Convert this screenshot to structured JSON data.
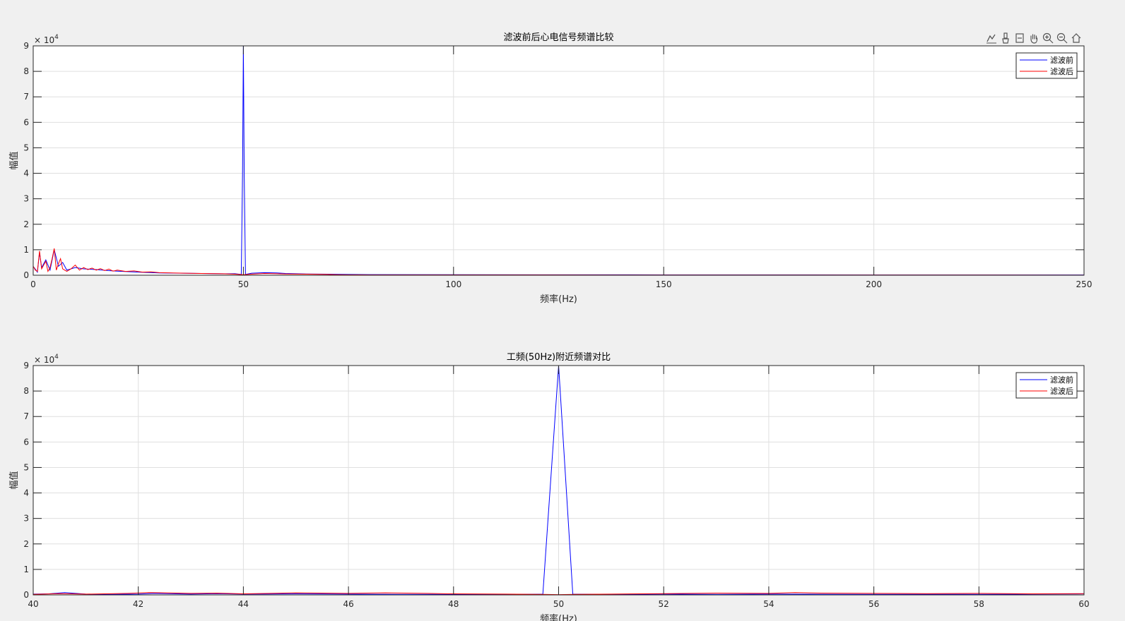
{
  "toolbar": {
    "icons": [
      "data-tips-icon",
      "brush-icon",
      "restore-view-icon",
      "pan-icon",
      "zoom-in-icon",
      "zoom-out-icon",
      "home-icon"
    ]
  },
  "colors": {
    "before": "#0000ff",
    "after": "#ff0000",
    "grid": "#dfdfdf",
    "axes_bg": "#ffffff",
    "figure_bg": "#f0f0f0"
  },
  "chart_data": [
    {
      "type": "line",
      "title": "滤波前后心电信号频谱比较",
      "xlabel": "频率(Hz)",
      "ylabel": "幅值",
      "xlim": [
        0,
        250
      ],
      "ylim": [
        0,
        90000
      ],
      "xticks": [
        0,
        50,
        100,
        150,
        200,
        250
      ],
      "xtick_labels": [
        "0",
        "50",
        "100",
        "150",
        "200",
        "250"
      ],
      "yticks": [
        0,
        10000,
        20000,
        30000,
        40000,
        50000,
        60000,
        70000,
        80000,
        90000
      ],
      "ytick_labels": [
        "0",
        "1",
        "2",
        "3",
        "4",
        "5",
        "6",
        "7",
        "8",
        "9"
      ],
      "y_exponent": "× 10",
      "y_exponent_power": "4",
      "grid": true,
      "legend": "top-right",
      "series": [
        {
          "name": "滤波前",
          "color": "#0000ff",
          "x": [
            0,
            1,
            1.5,
            2,
            3,
            4,
            5,
            6,
            7,
            8,
            10,
            12,
            15,
            18,
            20,
            25,
            30,
            35,
            40,
            45,
            48,
            49.5,
            49.8,
            50,
            50.2,
            50.5,
            52,
            55,
            58,
            60,
            65,
            70,
            75,
            80,
            100,
            150,
            200,
            250
          ],
          "y": [
            3500,
            1200,
            9000,
            3000,
            6000,
            2000,
            10000,
            3500,
            5000,
            2000,
            3000,
            2500,
            2200,
            1800,
            1600,
            1200,
            900,
            800,
            700,
            600,
            600,
            300,
            40000,
            90000,
            40000,
            300,
            800,
            1000,
            900,
            700,
            500,
            400,
            300,
            250,
            200,
            150,
            120,
            100
          ]
        },
        {
          "name": "滤波后",
          "color": "#ff0000",
          "x": [
            0,
            0.5,
            1,
            1.5,
            2,
            2.5,
            3,
            3.5,
            4,
            4.5,
            5,
            5.5,
            6,
            6.5,
            7,
            7.5,
            8,
            9,
            10,
            11,
            12,
            13,
            14,
            15,
            16,
            17,
            18,
            19,
            20,
            22,
            24,
            26,
            28,
            30,
            33,
            36,
            40,
            45,
            48,
            50,
            52,
            55,
            58,
            60,
            65,
            70,
            72,
            75,
            80,
            100,
            150,
            200,
            250
          ],
          "y": [
            3500,
            2000,
            1500,
            9500,
            2500,
            4000,
            5500,
            1500,
            3000,
            6500,
            10500,
            2000,
            4500,
            6500,
            2500,
            2000,
            1500,
            2500,
            4000,
            2000,
            3000,
            2200,
            2800,
            2000,
            2600,
            1800,
            2400,
            1600,
            2000,
            1500,
            1700,
            1200,
            1300,
            1000,
            900,
            800,
            700,
            600,
            400,
            200,
            400,
            700,
            600,
            500,
            400,
            300,
            200,
            150,
            120,
            100,
            80,
            60,
            50
          ]
        }
      ]
    },
    {
      "type": "line",
      "title": "工频(50Hz)附近频谱对比",
      "xlabel": "频率(Hz)",
      "ylabel": "幅值",
      "xlim": [
        40,
        60
      ],
      "ylim": [
        0,
        90000
      ],
      "xticks": [
        40,
        42,
        44,
        46,
        48,
        50,
        52,
        54,
        56,
        58,
        60
      ],
      "xtick_labels": [
        "40",
        "42",
        "44",
        "46",
        "48",
        "50",
        "52",
        "54",
        "56",
        "58",
        "60"
      ],
      "yticks": [
        0,
        10000,
        20000,
        30000,
        40000,
        50000,
        60000,
        70000,
        80000,
        90000
      ],
      "ytick_labels": [
        "0",
        "1",
        "2",
        "3",
        "4",
        "5",
        "6",
        "7",
        "8",
        "9"
      ],
      "y_exponent": "× 10",
      "y_exponent_power": "4",
      "grid": true,
      "legend": "top-right",
      "series": [
        {
          "name": "滤波前",
          "color": "#0000ff",
          "x": [
            40,
            40.3,
            40.6,
            41,
            41.5,
            42,
            42.3,
            43,
            43.5,
            44,
            45,
            46,
            47,
            48,
            49,
            49.7,
            50,
            50.27,
            51,
            52,
            53,
            54,
            55,
            56,
            57,
            58,
            59,
            60
          ],
          "y": [
            300,
            400,
            900,
            300,
            200,
            300,
            600,
            300,
            500,
            300,
            400,
            300,
            200,
            200,
            200,
            300,
            90000,
            300,
            200,
            300,
            200,
            300,
            250,
            200,
            250,
            200,
            300,
            400
          ]
        },
        {
          "name": "滤波后",
          "color": "#ff0000",
          "x": [
            40,
            40.5,
            41,
            41.8,
            42.2,
            43,
            43.5,
            44,
            45,
            46,
            46.7,
            47.5,
            48,
            49,
            49.7,
            50,
            50.3,
            51,
            52,
            53,
            54,
            54.5,
            55,
            56,
            57,
            58,
            59,
            60
          ],
          "y": [
            200,
            500,
            300,
            600,
            900,
            600,
            700,
            400,
            800,
            600,
            800,
            600,
            400,
            300,
            200,
            100,
            200,
            300,
            500,
            700,
            600,
            900,
            700,
            600,
            500,
            600,
            400,
            500
          ]
        }
      ]
    }
  ]
}
